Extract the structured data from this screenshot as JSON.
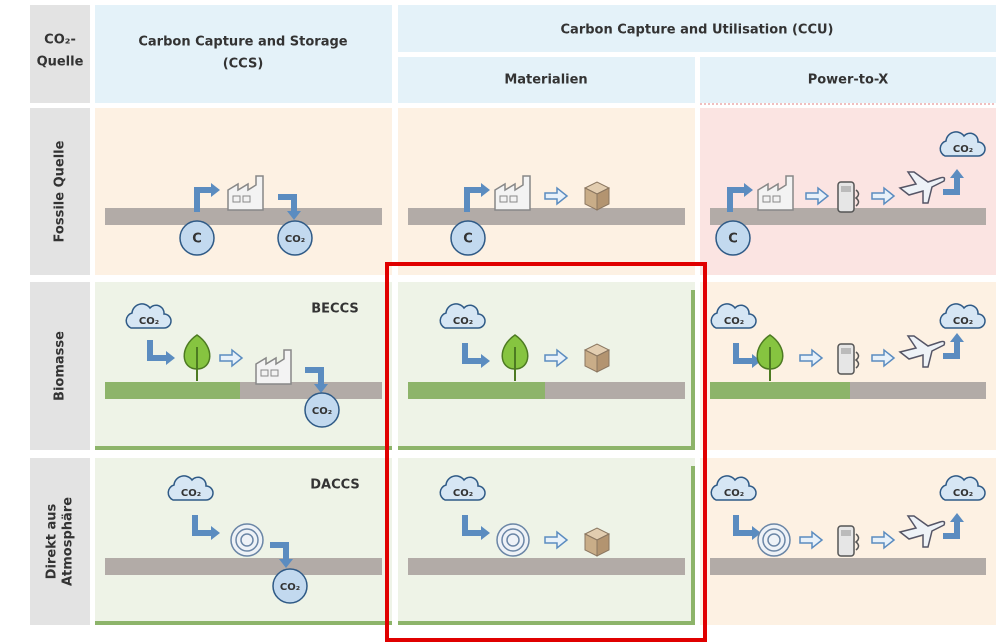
{
  "header": {
    "source": [
      "CO₂-",
      "Quelle"
    ],
    "ccs": [
      "Carbon Capture and Storage",
      "(CCS)"
    ],
    "ccu": "Carbon Capture and Utilisation (CCU)",
    "materials": "Materialien",
    "ptx": "Power-to-X"
  },
  "rows": [
    {
      "label": [
        "Fossile Quelle"
      ]
    },
    {
      "label": [
        "Biomasse"
      ],
      "ccs_tag": "BECCS"
    },
    {
      "label": [
        "Direkt aus",
        "Atmosphäre"
      ],
      "ccs_tag": "DACCS"
    }
  ],
  "icons": {
    "carbon": "C",
    "co2": "CO₂"
  }
}
